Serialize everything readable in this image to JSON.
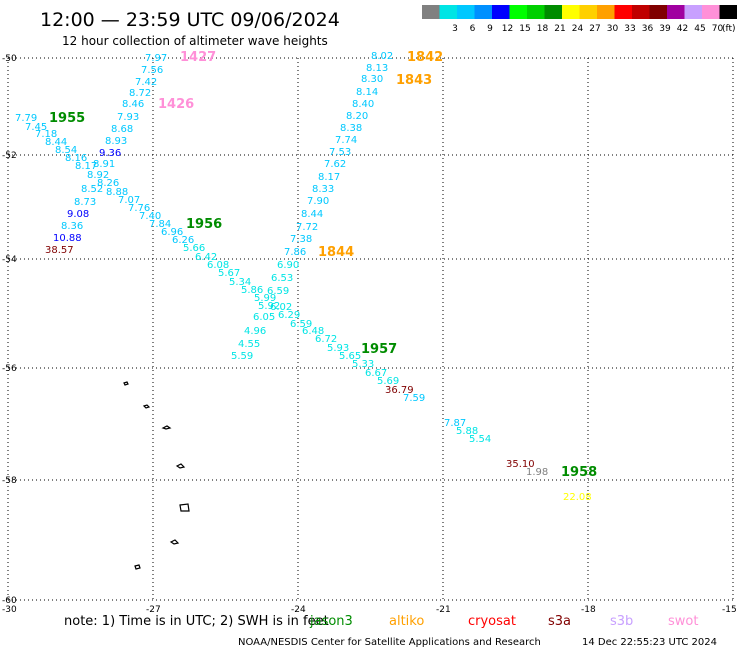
{
  "header": {
    "title": "12:00 — 23:59 UTC 09/06/2024",
    "subtitle": "12 hour collection of altimeter wave heights"
  },
  "colorbar": {
    "unit": "(ft)",
    "bins": [
      {
        "label": "",
        "color": "#808080"
      },
      {
        "label": "3",
        "color": "#00e5e5"
      },
      {
        "label": "6",
        "color": "#00c8ff"
      },
      {
        "label": "9",
        "color": "#0090ff"
      },
      {
        "label": "12",
        "color": "#0000ff"
      },
      {
        "label": "15",
        "color": "#00ff00"
      },
      {
        "label": "18",
        "color": "#00d000"
      },
      {
        "label": "21",
        "color": "#008c00"
      },
      {
        "label": "24",
        "color": "#ffff00"
      },
      {
        "label": "27",
        "color": "#ffd000"
      },
      {
        "label": "30",
        "color": "#ffa000"
      },
      {
        "label": "33",
        "color": "#ff0000"
      },
      {
        "label": "36",
        "color": "#c00000"
      },
      {
        "label": "39",
        "color": "#800000"
      },
      {
        "label": "42",
        "color": "#a000a0"
      },
      {
        "label": "45",
        "color": "#c8a0ff"
      },
      {
        "label": "70",
        "color": "#ff90d8"
      },
      {
        "label": "",
        "color": "#000000"
      }
    ]
  },
  "axes": {
    "x_ticks": [
      "-30",
      "-27",
      "-24",
      "-21",
      "-18",
      "-15"
    ],
    "y_ticks": [
      "-50",
      "-52",
      "-54",
      "-56",
      "-58",
      "-60"
    ],
    "grid": "dotted"
  },
  "passes": [
    {
      "label": "1427",
      "color": "#ff90d8"
    },
    {
      "label": "1426",
      "color": "#ff90d8"
    },
    {
      "label": "1842",
      "color": "#ffa000"
    },
    {
      "label": "1843",
      "color": "#ffa000"
    },
    {
      "label": "1844",
      "color": "#ffa000"
    },
    {
      "label": "1955",
      "color": "#008c00"
    },
    {
      "label": "1956",
      "color": "#008c00"
    },
    {
      "label": "1957",
      "color": "#008c00"
    },
    {
      "label": "1958",
      "color": "#008c00"
    }
  ],
  "observations": {
    "track_1426_1427": [
      "7.97",
      "7.56",
      "7.42",
      "8.72",
      "8.46",
      "7.93",
      "8.68",
      "8.93",
      "9.36"
    ],
    "track_1842_1844": [
      "8.02",
      "8.13",
      "8.30",
      "8.14",
      "8.40",
      "8.20",
      "8.38",
      "7.74",
      "7.53",
      "7.62",
      "8.17",
      "8.33",
      "7.90",
      "8.44",
      "7.72",
      "7.38",
      "7.86"
    ],
    "track_1955_upper": [
      "7.79",
      "7.45",
      "7.18",
      "8.44",
      "8.54",
      "8.16",
      "8.17",
      "8.91",
      "8.92",
      "8.26",
      "8.52",
      "8.88",
      "8.73",
      "7.07",
      "7.76",
      "7.40",
      "7.84",
      "9.08",
      "8.36",
      "10.88",
      "38.57"
    ],
    "track_1956_1957": [
      "6.96",
      "6.26",
      "5.66",
      "6.42",
      "6.08",
      "5.67",
      "5.34",
      "5.86",
      "6.59",
      "5.99",
      "5.92",
      "6.02",
      "6.05",
      "6.29",
      "4.96",
      "4.55",
      "5.59",
      "6.90",
      "6.53",
      "6.59",
      "6.48",
      "6.72",
      "5.93",
      "5.65",
      "5.33",
      "6.67",
      "5.69",
      "36.79",
      "7.59",
      "7.87",
      "5.88",
      "5.54",
      "35.10",
      "1.98",
      "22.08"
    ]
  },
  "footer": {
    "note": "note:  1) Time is in UTC; 2) SWH is in feet",
    "satellites": [
      {
        "name": "jason3",
        "color": "#008c00"
      },
      {
        "name": "altiko",
        "color": "#ffa000"
      },
      {
        "name": "cryosat",
        "color": "#ff0000"
      },
      {
        "name": "s3a",
        "color": "#800000"
      },
      {
        "name": "s3b",
        "color": "#c8a0ff"
      },
      {
        "name": "swot",
        "color": "#ff90d8"
      }
    ],
    "credit": "NOAA/NESDIS Center for Satellite Applications and Research",
    "timestamp": "14 Dec 22:55:23 UTC 2024"
  }
}
